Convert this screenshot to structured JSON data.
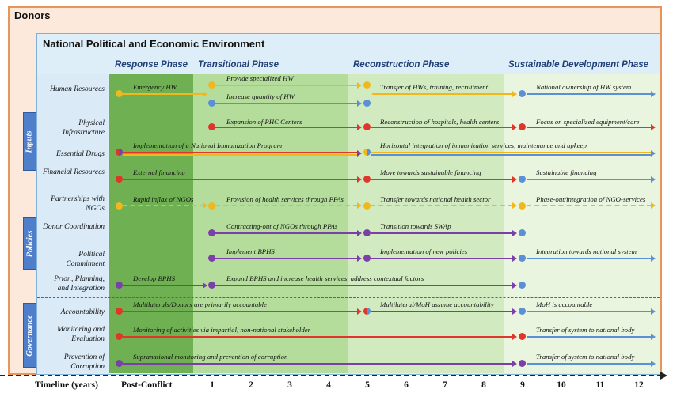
{
  "outer_title": "Donors",
  "inner_title": "National Political and Economic Environment",
  "phases": [
    "Response Phase",
    "Transitional Phase",
    "Reconstruction Phase",
    "Sustainable Development Phase"
  ],
  "groups": [
    "Inputs",
    "Policies",
    "Governance"
  ],
  "rows": [
    "Human Resources",
    "Physical Infrastructure",
    "Essential Drugs",
    "Financial Resources",
    "Partnerships with NGOs",
    "Donor Coordination",
    "Political Commitment",
    "Prior., Planning, and Integration",
    "Accountability",
    "Monitoring and Evaluation",
    "Prevention of Corruption"
  ],
  "timeline_label": "Timeline (years)",
  "timeline_start": "Post-Conflict",
  "timeline_years": [
    "1",
    "2",
    "3",
    "4",
    "5",
    "6",
    "7",
    "8",
    "9",
    "10",
    "11",
    "12"
  ],
  "colors": {
    "yellow": "#f2b71c",
    "blue": "#5b8fd6",
    "red": "#e0352b",
    "purple": "#7a3fa8"
  },
  "labels": {
    "hr_emergency": "Emergency HW",
    "hr_specialized": "Provide specialized HW",
    "hr_quantity": "Increase quantity of HW",
    "hr_transfer": "Transfer of HWs, training, recruitment",
    "hr_ownership": "National ownership of HW system",
    "pi_expansion": "Expansion of PHC Centers",
    "pi_reconstruction": "Reconstruction of hospitals, health centers",
    "pi_focus": "Focus on specialized equipment/care",
    "ed_implementation": "Implementation of a National Immunization Program",
    "ed_horizontal": "Horizontal integration of immunization services, maintenance and upkeep",
    "fr_external": "External financing",
    "fr_move": "Move towards sustainable financing",
    "fr_sustainable": "Sustainable financing",
    "ngo_influx": "Rapid inflax of NGOs",
    "ngo_provision": "Provision of health services through PPAs",
    "ngo_transfer": "Transfer towards national health sector",
    "ngo_phaseout": "Phase-out/integration of NGO-services",
    "dc_contracting": "Contracting-out of NGOs through PPAs",
    "dc_transition": "Transition towards SWAp",
    "pc_implement": "Implement BPHS",
    "pc_newpolicies": "Implementation of new policies",
    "pc_integration": "Integration towards national system",
    "pp_develop": "Develop BPHS",
    "pp_expand": "Expand BPHS and increase health services, address contextual factors",
    "acc_multilaterals": "Multilaterals/Donors are primarily accountable",
    "acc_moh_assume": "Multilateral/MoH assume accountability",
    "acc_moh": "MoH is accountable",
    "me_monitoring": "Monitoring of activities via impartial, non-national stakeholder",
    "me_transfer": "Transfer of system to national body",
    "pc2_supranational": "Supranational monitoring and prevention of corruption",
    "pc2_transfer": "Transfer of system to national body"
  }
}
